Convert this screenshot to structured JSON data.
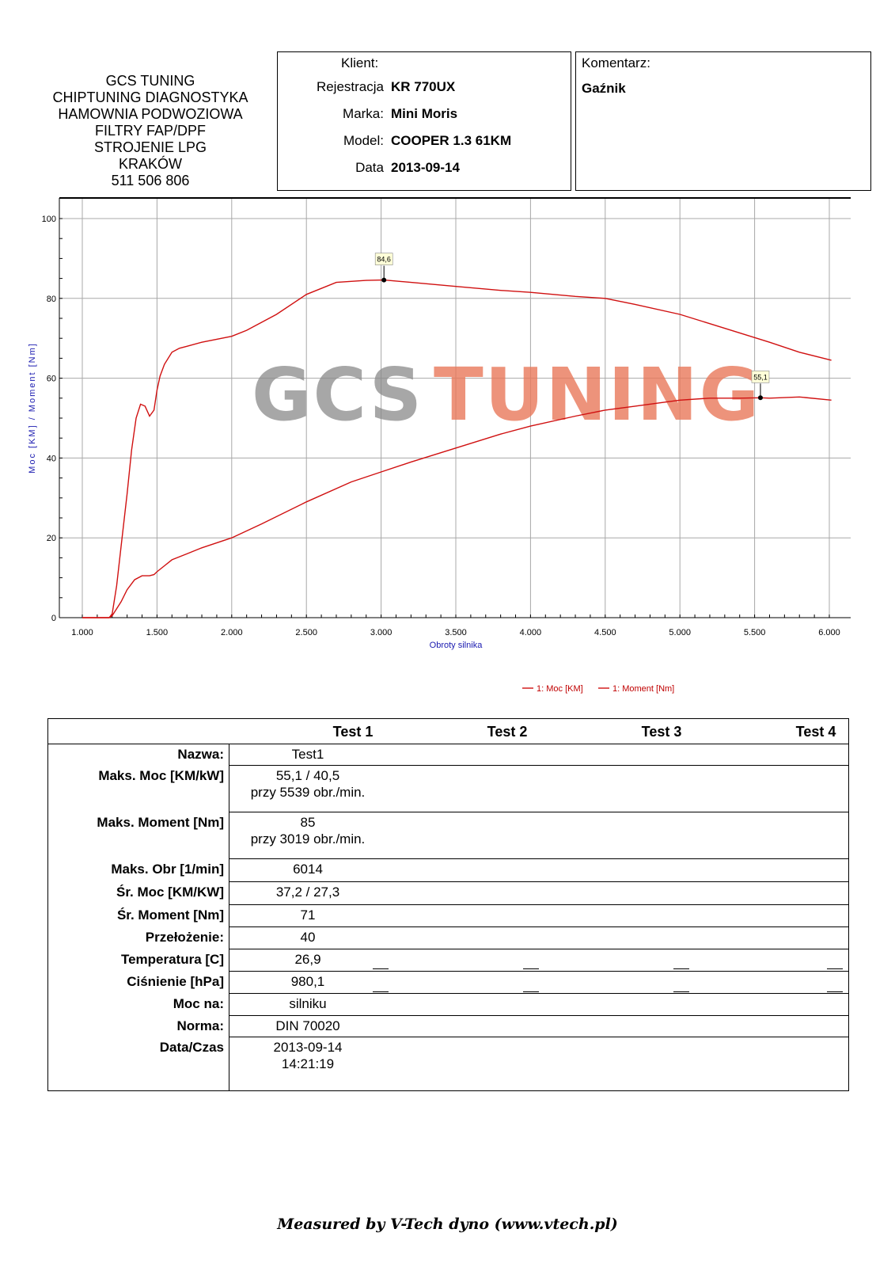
{
  "company": {
    "lines": [
      "GCS TUNING",
      "CHIPTUNING DIAGNOSTYKA",
      "HAMOWNIA PODWOZIOWA",
      "FILTRY FAP/DPF",
      "STROJENIE LPG",
      "KRAKÓW",
      "511 506 806"
    ]
  },
  "client": {
    "heading": "Klient:",
    "fields": [
      {
        "label": "Rejestracja",
        "value": "KR 770UX"
      },
      {
        "label": "Marka:",
        "value": "Mini Moris"
      },
      {
        "label": "Model:",
        "value": "COOPER 1.3 61KM"
      },
      {
        "label": "Data",
        "value": "2013-09-14"
      }
    ]
  },
  "comment": {
    "heading": "Komentarz:",
    "text": "Gaźnik"
  },
  "chart_data": {
    "type": "line",
    "watermark": "GCS TUNING",
    "watermark_colors": {
      "left": "#8a8a8a",
      "right": "#e8785a"
    },
    "xlabel": "Obroty silnika",
    "ylabel": "Moc [KM] / Moment [Nm]",
    "xlim": [
      1000,
      6000
    ],
    "ylim": [
      0,
      100
    ],
    "x_ticks": [
      1000,
      1500,
      2000,
      2500,
      3000,
      3500,
      4000,
      4500,
      5000,
      5500,
      6000
    ],
    "x_tick_labels": [
      "1.000",
      "1.500",
      "2.000",
      "2.500",
      "3.000",
      "3.500",
      "4.000",
      "4.500",
      "5.000",
      "5.500",
      "6.000"
    ],
    "y_ticks": [
      0,
      20,
      40,
      60,
      80,
      100
    ],
    "y_tick_labels": [
      "0",
      "20",
      "40",
      "60",
      "80",
      "100"
    ],
    "grid": true,
    "legend_position": "bottom-right",
    "series": [
      {
        "name": "1: Moc [KM]",
        "color": "#d01010",
        "x": [
          1000,
          1180,
          1200,
          1260,
          1300,
          1350,
          1400,
          1450,
          1480,
          1500,
          1550,
          1600,
          1700,
          1800,
          2000,
          2200,
          2500,
          2800,
          3000,
          3200,
          3500,
          3800,
          4000,
          4300,
          4500,
          4700,
          5000,
          5200,
          5400,
          5539,
          5600,
          5800,
          6014
        ],
        "y": [
          0,
          0,
          0.5,
          4,
          7,
          9.5,
          10.5,
          10.5,
          10.8,
          11.5,
          13,
          14.5,
          16,
          17.5,
          20,
          23.5,
          29,
          34,
          36.5,
          39,
          42.5,
          46,
          48,
          50.5,
          52,
          53,
          54.5,
          55,
          55,
          55.1,
          55,
          55.3,
          54.5
        ]
      },
      {
        "name": "1: Moment [Nm]",
        "color": "#d01010",
        "x": [
          1000,
          1180,
          1200,
          1230,
          1260,
          1300,
          1330,
          1360,
          1390,
          1420,
          1450,
          1480,
          1500,
          1520,
          1550,
          1600,
          1650,
          1700,
          1800,
          2000,
          2100,
          2300,
          2500,
          2700,
          2900,
          3019,
          3200,
          3500,
          3800,
          4000,
          4300,
          4500,
          4700,
          5000,
          5300,
          5600,
          5800,
          6014
        ],
        "y": [
          0,
          0,
          1,
          8,
          18,
          31,
          42,
          50,
          53.5,
          53,
          50.5,
          52,
          57,
          60.5,
          63.5,
          66.5,
          67.5,
          68,
          69,
          70.5,
          72,
          76,
          81,
          84,
          84.5,
          84.6,
          84,
          83,
          82,
          81.5,
          80.5,
          80,
          78.5,
          76,
          72.5,
          69,
          66.5,
          64.5
        ]
      }
    ],
    "annotations": [
      {
        "text": "84,6",
        "x": 3019,
        "y": 84.6
      },
      {
        "text": "55,1",
        "x": 5539,
        "y": 55.1
      }
    ]
  },
  "results": {
    "tests": [
      "Test 1",
      "Test 2",
      "Test 3",
      "Test 4"
    ],
    "rows": [
      {
        "label": "Nazwa:",
        "value": [
          "Test1"
        ]
      },
      {
        "label": "Maks. Moc [KM/kW]",
        "value": [
          "55,1 / 40,5",
          "przy 5539 obr./min."
        ]
      },
      {
        "label": "Maks. Moment [Nm]",
        "value": [
          "85",
          "przy 3019 obr./min."
        ]
      },
      {
        "label": "Maks. Obr [1/min]",
        "value": [
          "6014"
        ]
      },
      {
        "label": "Śr. Moc [KM/KW]",
        "value": [
          "37,2 / 27,3"
        ]
      },
      {
        "label": "Śr. Moment [Nm]",
        "value": [
          "71"
        ]
      },
      {
        "label": "Przełożenie:",
        "value": [
          "40"
        ]
      },
      {
        "label": "Temperatura [C]",
        "value": [
          "26,9"
        ]
      },
      {
        "label": "Ciśnienie [hPa]",
        "value": [
          "980,1"
        ]
      },
      {
        "label": "Moc na:",
        "value": [
          "silniku"
        ]
      },
      {
        "label": "Norma:",
        "value": [
          "DIN 70020"
        ]
      },
      {
        "label": "Data/Czas",
        "value": [
          "2013-09-14",
          "14:21:19"
        ]
      }
    ]
  },
  "footer": "Measured by V-Tech dyno (www.vtech.pl)"
}
